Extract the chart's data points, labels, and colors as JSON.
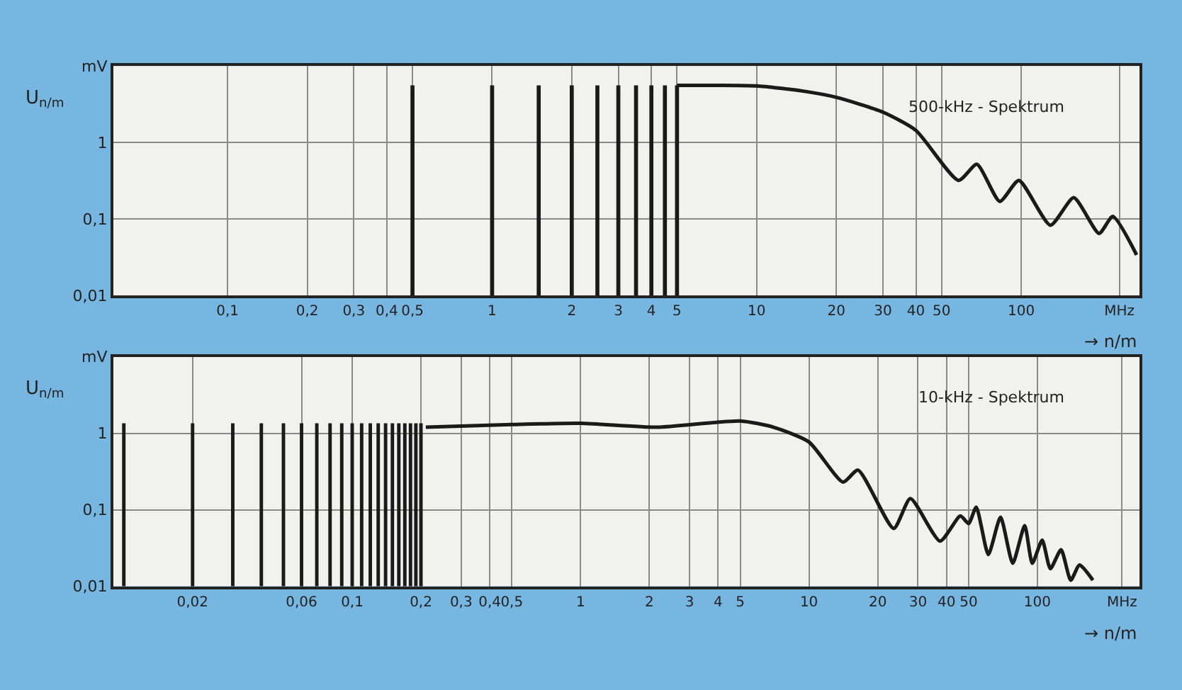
{
  "chart_data": [
    {
      "type": "line",
      "ylabel": "U$_{n/m}$",
      "xlabel": "→ n/m",
      "log": "xy",
      "grid": true,
      "annotations": [
        "500-kHz - Spektrum"
      ],
      "xlim": [
        0.037,
        280
      ],
      "ylim": [
        0.01,
        10
      ],
      "xticks": [
        {
          "value": 0.1,
          "label": "0,1"
        },
        {
          "value": 0.2,
          "label": "0,2"
        },
        {
          "value": 0.3,
          "label": "0,3"
        },
        {
          "value": 0.4,
          "label": "0,4"
        },
        {
          "value": 0.5,
          "label": "0,5"
        },
        1,
        2,
        3,
        4,
        5,
        10,
        20,
        30,
        40,
        50,
        100,
        {
          "value": 235,
          "label": "MHz"
        }
      ],
      "yticks": [
        {
          "value": 0.01,
          "label": "0,01"
        },
        {
          "value": 0.1,
          "label": "0,1"
        },
        1,
        {
          "value": 10,
          "label": "mV"
        }
      ],
      "series": [
        {
          "type": "bar",
          "color": "#1a1a1a",
          "x": [
            0.5,
            1,
            1.5,
            2,
            2.5,
            3,
            3.5,
            4,
            4.5,
            5
          ],
          "values": [
            5.6,
            5.6,
            5.6,
            5.6,
            5.6,
            5.6,
            5.6,
            5.6,
            5.6,
            5.6
          ]
        },
        {
          "color": "#1a1a1a",
          "x": [
            5,
            7,
            10,
            15,
            20,
            30,
            40,
            58,
            68,
            83,
            98,
            129,
            158,
            197,
            222,
            273
          ],
          "values": [
            5.6,
            5.6,
            5.5,
            4.7,
            3.9,
            2.5,
            1.44,
            0.32,
            0.52,
            0.17,
            0.32,
            0.083,
            0.19,
            0.065,
            0.108,
            0.034
          ]
        }
      ]
    },
    {
      "type": "line",
      "ylabel": "U$_{n/m}$",
      "xlabel": "→ n/m",
      "log": "xy",
      "grid": true,
      "annotations": [
        "10-kHz - Spektrum"
      ],
      "xlim": [
        0.009,
        280
      ],
      "ylim": [
        0.01,
        10
      ],
      "xticks": [
        {
          "value": 0.02,
          "label": "0,02"
        },
        {
          "value": 0.06,
          "label": "0,06"
        },
        {
          "value": 0.1,
          "label": "0,1"
        },
        {
          "value": 0.2,
          "label": "0,2"
        },
        {
          "value": 0.3,
          "label": "0,3"
        },
        {
          "value": 0.4,
          "label": "0,4"
        },
        {
          "value": 0.5,
          "label": "0,5"
        },
        1,
        2,
        3,
        4,
        5,
        10,
        20,
        30,
        40,
        50,
        100,
        {
          "value": 235,
          "label": "MHz"
        }
      ],
      "yticks": [
        {
          "value": 0.01,
          "label": "0,01"
        },
        {
          "value": 0.1,
          "label": "0,1"
        },
        1,
        {
          "value": 10,
          "label": "mV"
        }
      ],
      "series": [
        {
          "type": "bar",
          "color": "#1a1a1a",
          "x": [
            0.01,
            0.02,
            0.03,
            0.04,
            0.05,
            0.06,
            0.07,
            0.08,
            0.09,
            0.1,
            0.11,
            0.12,
            0.13,
            0.14,
            0.15,
            0.16,
            0.17,
            0.18,
            0.19,
            0.2
          ],
          "values": [
            1.35,
            1.35,
            1.35,
            1.35,
            1.35,
            1.35,
            1.35,
            1.35,
            1.35,
            1.35,
            1.35,
            1.35,
            1.35,
            1.35,
            1.35,
            1.35,
            1.35,
            1.35,
            1.35,
            1.35
          ]
        },
        {
          "color": "#1a1a1a",
          "x": [
            0.21,
            0.5,
            1,
            2.16,
            5,
            7,
            10,
            14.1,
            16.4,
            23.5,
            27.8,
            37.5,
            46,
            50,
            54,
            61,
            69,
            78,
            88,
            95,
            105,
            114,
            127,
            140,
            153,
            175
          ],
          "values": [
            1.2,
            1.3,
            1.35,
            1.2,
            1.45,
            1.2,
            0.77,
            0.23,
            0.33,
            0.057,
            0.14,
            0.039,
            0.083,
            0.066,
            0.108,
            0.026,
            0.08,
            0.02,
            0.062,
            0.02,
            0.04,
            0.017,
            0.03,
            0.012,
            0.019,
            0.012
          ]
        }
      ]
    }
  ]
}
